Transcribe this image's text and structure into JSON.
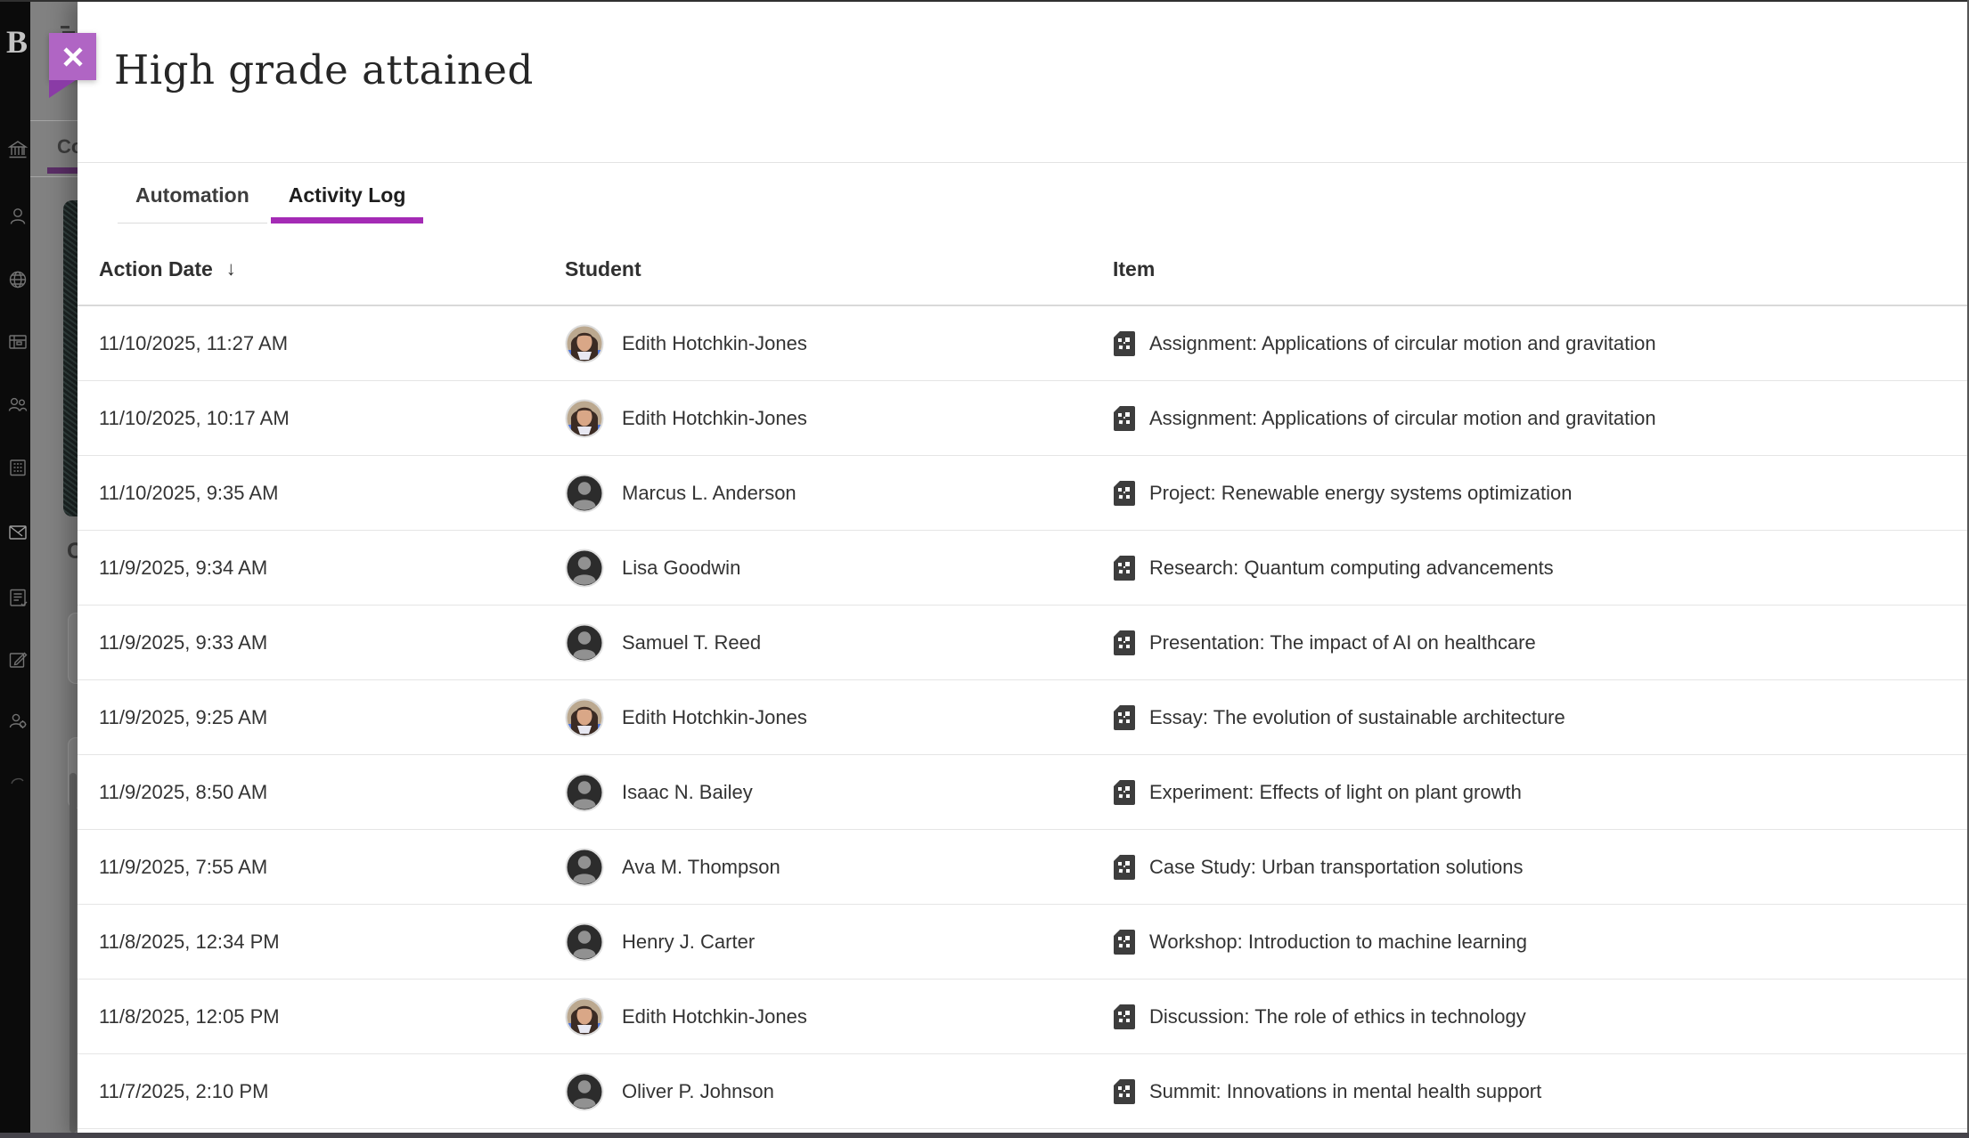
{
  "modal": {
    "title": "High grade attained",
    "close_icon": "x",
    "tabs": [
      {
        "label": "Automation",
        "active": false
      },
      {
        "label": "Activity Log",
        "active": true
      }
    ],
    "table": {
      "columns": [
        "Action Date",
        "Student",
        "Item"
      ],
      "sort_icon": "↓",
      "sorted_column": "Action Date",
      "rows": [
        {
          "date": "11/10/2025, 11:27 AM",
          "student": "Edith Hotchkin-Jones",
          "avatar": "photo",
          "item": "Assignment: Applications of circular motion and gravitation"
        },
        {
          "date": "11/10/2025, 10:17 AM",
          "student": "Edith Hotchkin-Jones",
          "avatar": "photo",
          "item": "Assignment: Applications of circular motion and gravitation"
        },
        {
          "date": "11/10/2025, 9:35 AM",
          "student": "Marcus L. Anderson",
          "avatar": "silhouette",
          "item": "Project: Renewable energy systems optimization"
        },
        {
          "date": "11/9/2025, 9:34 AM",
          "student": "Lisa Goodwin",
          "avatar": "silhouette",
          "item": "Research: Quantum computing advancements"
        },
        {
          "date": "11/9/2025, 9:33 AM",
          "student": "Samuel T. Reed",
          "avatar": "silhouette",
          "item": "Presentation: The impact of AI on healthcare"
        },
        {
          "date": "11/9/2025, 9:25 AM",
          "student": "Edith Hotchkin-Jones",
          "avatar": "photo",
          "item": "Essay: The evolution of sustainable architecture"
        },
        {
          "date": "11/9/2025, 8:50 AM",
          "student": "Isaac N. Bailey",
          "avatar": "silhouette",
          "item": "Experiment: Effects of light on plant growth"
        },
        {
          "date": "11/9/2025, 7:55 AM",
          "student": "Ava M. Thompson",
          "avatar": "silhouette",
          "item": "Case Study: Urban transportation solutions"
        },
        {
          "date": "11/8/2025, 12:34 PM",
          "student": "Henry J. Carter",
          "avatar": "silhouette",
          "item": "Workshop: Introduction to machine learning"
        },
        {
          "date": "11/8/2025, 12:05 PM",
          "student": "Edith Hotchkin-Jones",
          "avatar": "photo",
          "item": "Discussion: The role of ethics in technology"
        },
        {
          "date": "11/7/2025, 2:10 PM",
          "student": "Oliver P. Johnson",
          "avatar": "silhouette",
          "item": "Summit: Innovations in mental health support"
        }
      ]
    }
  },
  "sidebar": {
    "logo": "B",
    "icons": [
      "institution",
      "profile",
      "globe",
      "activity-stream",
      "groups",
      "organizations",
      "messages",
      "grades",
      "tools",
      "admin",
      "recent"
    ]
  },
  "background_page": {
    "tab_fragment": "Co",
    "heading_fragment": "C"
  },
  "colors": {
    "accent_purple": "#a42bb5",
    "ribbon_purple": "#b065c4",
    "ribbon_fold_purple": "#8a3ba6",
    "rail_black": "#0b0b0b",
    "backdrop_gray": "#818181",
    "row_divider": "#e5e5e5",
    "text": "#333333"
  }
}
